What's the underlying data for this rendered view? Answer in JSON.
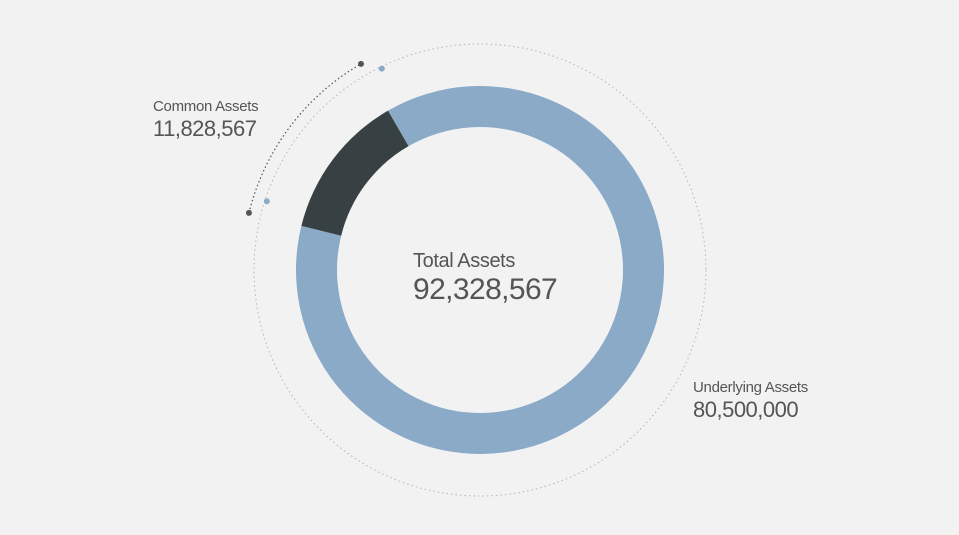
{
  "colors": {
    "background": "#f2f2f2",
    "underlying": "#8aaac8",
    "common": "#374144",
    "text": "#555555",
    "guide": "#aaaaaa",
    "marker_dark": "#555555",
    "marker_light": "#8aaac8"
  },
  "chart_data": {
    "type": "pie",
    "donut": true,
    "title": "",
    "center_label": "Total Assets",
    "center_value": "92,328,567",
    "total": 92328567,
    "slices": [
      {
        "name": "Underlying Assets",
        "value": 80500000,
        "display": "80,500,000",
        "color": "#8aaac8"
      },
      {
        "name": "Common Assets",
        "value": 11828567,
        "display": "11,828,567",
        "color": "#374144"
      }
    ],
    "legend": "none"
  }
}
